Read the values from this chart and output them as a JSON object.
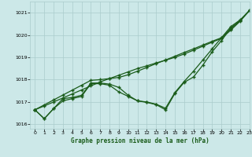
{
  "title": "Graphe pression niveau de la mer (hPa)",
  "bg_color": "#cce8e8",
  "grid_color": "#aacccc",
  "line_color": "#1a5c1a",
  "xlim": [
    -0.5,
    23
  ],
  "ylim": [
    1015.8,
    1021.5
  ],
  "yticks": [
    1016,
    1017,
    1018,
    1019,
    1020,
    1021
  ],
  "xticks": [
    0,
    1,
    2,
    3,
    4,
    5,
    6,
    7,
    8,
    9,
    10,
    11,
    12,
    13,
    14,
    15,
    16,
    17,
    18,
    19,
    20,
    21,
    22,
    23
  ],
  "series_curved1": [
    1016.65,
    1016.25,
    1016.7,
    1017.05,
    1017.15,
    1017.25,
    1017.82,
    1017.82,
    1017.75,
    1017.45,
    1017.25,
    1017.05,
    1016.98,
    1016.88,
    1016.65,
    1017.38,
    1017.88,
    1018.12,
    1018.65,
    1019.25,
    1019.75,
    1020.32,
    1020.65,
    1021.1
  ],
  "series_curved2": [
    1016.65,
    1016.25,
    1016.7,
    1017.15,
    1017.2,
    1017.3,
    1017.85,
    1017.85,
    1017.8,
    1017.65,
    1017.3,
    1017.05,
    1017.0,
    1016.9,
    1016.72,
    1017.42,
    1017.92,
    1018.38,
    1018.88,
    1019.38,
    1019.88,
    1020.38,
    1020.68,
    1021.1
  ],
  "series_linear1": [
    1016.65,
    1016.87,
    1017.09,
    1017.31,
    1017.53,
    1017.75,
    1017.97,
    1018.0,
    1018.05,
    1018.1,
    1018.22,
    1018.38,
    1018.55,
    1018.72,
    1018.88,
    1019.05,
    1019.22,
    1019.38,
    1019.55,
    1019.72,
    1019.88,
    1020.28,
    1020.65,
    1021.1
  ],
  "series_linear2": [
    1016.65,
    1016.82,
    1017.0,
    1017.18,
    1017.36,
    1017.54,
    1017.72,
    1017.9,
    1018.05,
    1018.2,
    1018.35,
    1018.5,
    1018.62,
    1018.75,
    1018.87,
    1019.0,
    1019.15,
    1019.32,
    1019.5,
    1019.68,
    1019.85,
    1020.22,
    1020.62,
    1021.1
  ]
}
